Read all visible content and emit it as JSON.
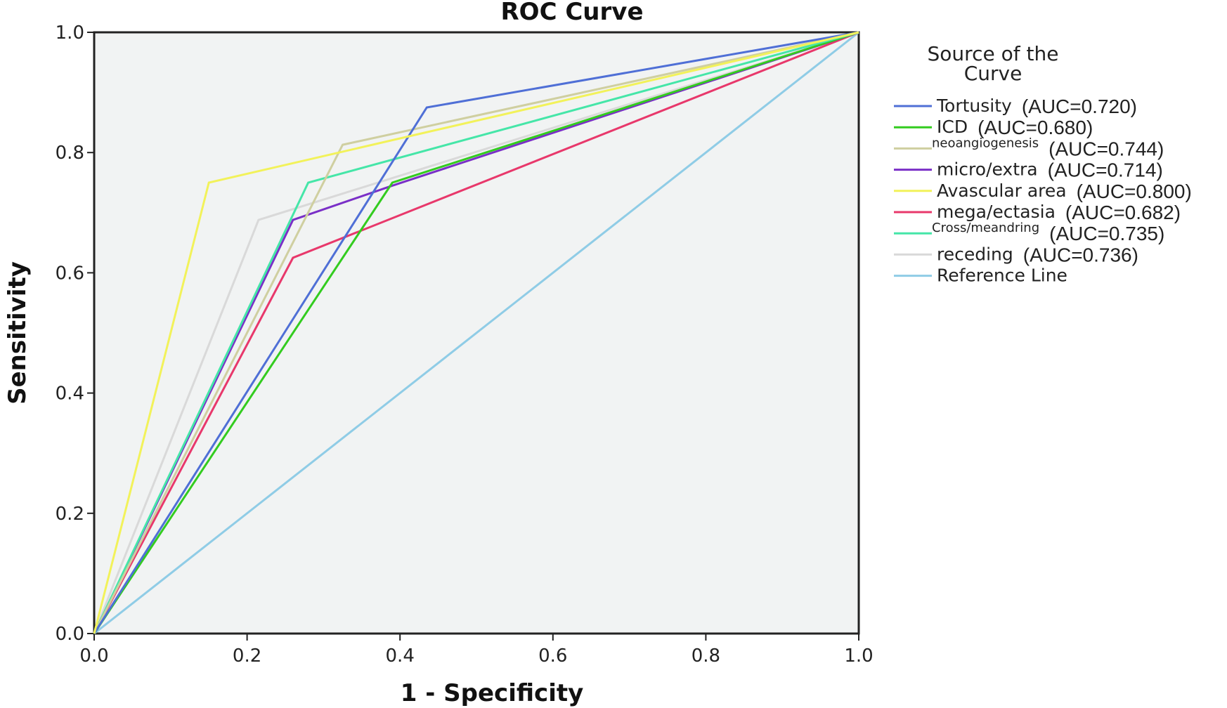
{
  "chart_data": {
    "type": "line",
    "title": "ROC Curve",
    "xlabel": "1 - Specificity",
    "ylabel": "Sensitivity",
    "xlim": [
      0,
      1
    ],
    "ylim": [
      0,
      1
    ],
    "xticks": [
      "0.0",
      "0.2",
      "0.4",
      "0.6",
      "0.8",
      "1.0"
    ],
    "yticks": [
      "0.0",
      "0.2",
      "0.4",
      "0.6",
      "0.8",
      "1.0"
    ],
    "grid": false,
    "plot_background": "#f1f3f3",
    "legend_title_lines": [
      "Source of the",
      "Curve"
    ],
    "legend_placement": "right",
    "series": [
      {
        "name": "Tortusity",
        "auc": "(AUC=0.720)",
        "color": "#4f6fd6",
        "x": [
          0,
          0.435,
          1
        ],
        "y": [
          0,
          0.875,
          1
        ]
      },
      {
        "name": "ICD",
        "auc": "(AUC=0.680)",
        "color": "#33cc1f",
        "x": [
          0,
          0.39,
          1
        ],
        "y": [
          0,
          0.75,
          1
        ]
      },
      {
        "name": "neoangiogenesis",
        "auc": "(AUC=0.744)",
        "color": "#cfcfa0",
        "x": [
          0,
          0.325,
          1
        ],
        "y": [
          0,
          0.813,
          1
        ]
      },
      {
        "name": "micro/extra",
        "auc": "(AUC=0.714)",
        "color": "#7a2fc7",
        "x": [
          0,
          0.26,
          0.39,
          1
        ],
        "y": [
          0,
          0.688,
          0.745,
          1
        ]
      },
      {
        "name": "Avascular area",
        "auc": "(AUC=0.800)",
        "color": "#f2f25a",
        "x": [
          0,
          0.15,
          1
        ],
        "y": [
          0,
          0.75,
          1
        ]
      },
      {
        "name": "mega/ectasia",
        "auc": "(AUC=0.682)",
        "color": "#e8386b",
        "x": [
          0,
          0.26,
          1
        ],
        "y": [
          0,
          0.625,
          1
        ]
      },
      {
        "name": "Cross/meandring",
        "auc": "(AUC=0.735)",
        "color": "#45e6a8",
        "x": [
          0,
          0.28,
          1
        ],
        "y": [
          0,
          0.75,
          1
        ]
      },
      {
        "name": "receding",
        "auc": "(AUC=0.736)",
        "color": "#d9d9d9",
        "x": [
          0,
          0.215,
          1
        ],
        "y": [
          0,
          0.688,
          1
        ]
      },
      {
        "name": "Reference Line",
        "auc": "",
        "color": "#8fcce6",
        "x": [
          0,
          1
        ],
        "y": [
          0,
          1
        ]
      }
    ]
  }
}
